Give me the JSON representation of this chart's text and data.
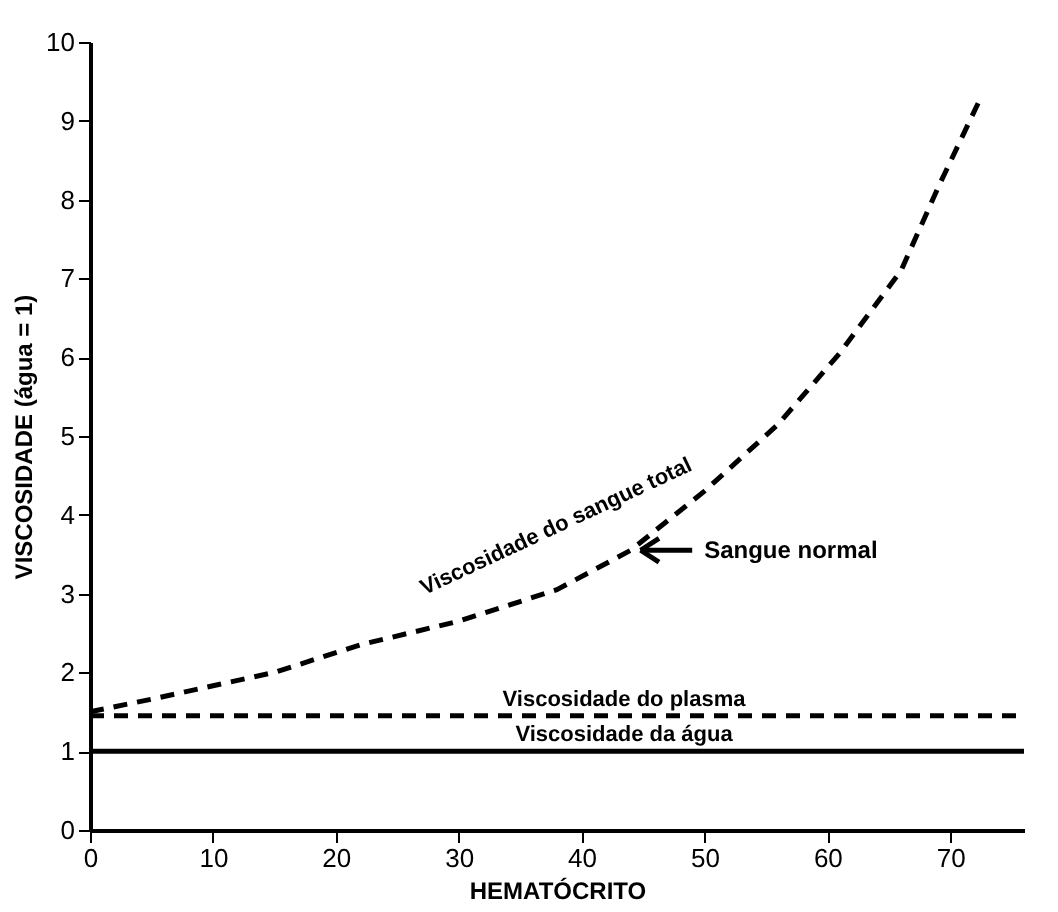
{
  "chart_data": {
    "type": "line",
    "xlabel": "HEMATÓCRITO",
    "ylabel": "VISCOSIDADE (água = 1)",
    "xlim": [
      0,
      76
    ],
    "xticks": [
      0,
      10,
      20,
      30,
      40,
      50,
      60,
      70
    ],
    "ylim": [
      0,
      10
    ],
    "yticks": [
      0,
      1,
      2,
      3,
      4,
      5,
      6,
      7,
      8,
      9,
      10
    ],
    "grid": false,
    "legend": false,
    "marker": "none",
    "series": [
      {
        "name": "Viscosidade do sangue total",
        "color": "#000000",
        "line_style": "dashed",
        "x": [
          0,
          5,
          15,
          22,
          30,
          38,
          44,
          50,
          56,
          61,
          66,
          69,
          72.5
        ],
        "values": [
          1.5,
          1.66,
          2.0,
          2.35,
          2.65,
          3.05,
          3.55,
          4.3,
          5.15,
          6.05,
          7.1,
          8.15,
          9.3
        ]
      },
      {
        "name": "Viscosidade do plasma",
        "color": "#000000",
        "line_style": "dashed",
        "x": [
          0,
          76
        ],
        "values": [
          1.45,
          1.45
        ]
      },
      {
        "name": "Viscosidade da água",
        "color": "#000000",
        "line_style": "solid",
        "x": [
          0,
          76
        ],
        "values": [
          1.0,
          1.0
        ]
      }
    ],
    "annotations": [
      "Sangue normal"
    ]
  }
}
